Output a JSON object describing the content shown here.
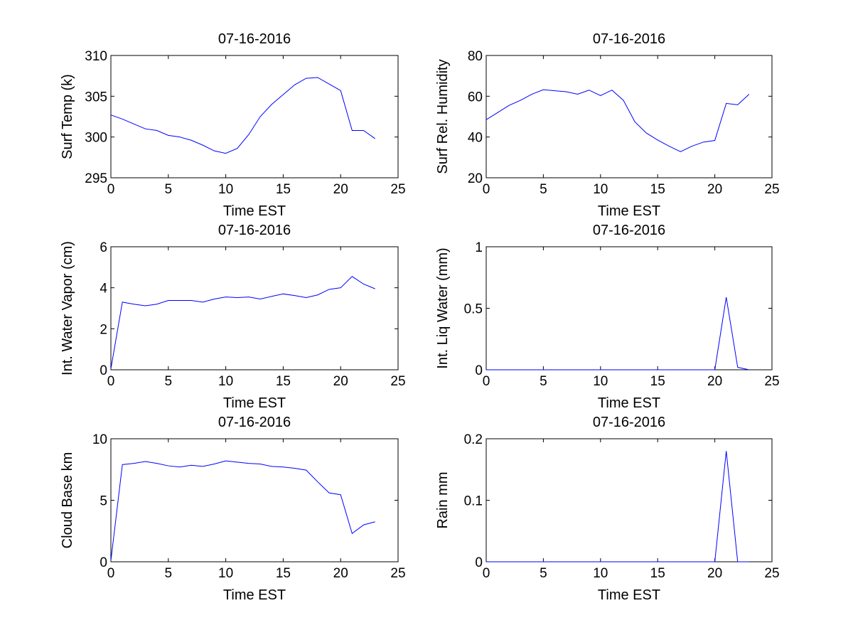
{
  "colors": {
    "background": "#ffffff",
    "axes": "#000000",
    "line": "#0000ff"
  },
  "chart_data": [
    {
      "type": "line",
      "title": "07-16-2016",
      "xlabel": "Time EST",
      "ylabel": "Surf Temp (k)",
      "xlim": [
        0,
        25
      ],
      "ylim": [
        295,
        310
      ],
      "xticks": [
        0,
        5,
        10,
        15,
        20,
        25
      ],
      "yticks": [
        295,
        300,
        305,
        310
      ],
      "grid": false,
      "series": [
        {
          "x": [
            0,
            1,
            2,
            3,
            4,
            5,
            6,
            7,
            8,
            9,
            10,
            11,
            12,
            13,
            14,
            15,
            16,
            17,
            18,
            19,
            20,
            21,
            22,
            23
          ],
          "values": [
            302.7,
            302.2,
            301.6,
            301.0,
            300.8,
            300.2,
            300.0,
            299.6,
            299.0,
            298.3,
            298.0,
            298.6,
            300.3,
            302.5,
            304.0,
            305.2,
            306.4,
            307.2,
            307.3,
            306.5,
            305.7,
            300.8,
            300.8,
            299.8
          ]
        }
      ]
    },
    {
      "type": "line",
      "title": "07-16-2016",
      "xlabel": "Time EST",
      "ylabel": "Surf Rel. Humidity",
      "xlim": [
        0,
        25
      ],
      "ylim": [
        20,
        80
      ],
      "xticks": [
        0,
        5,
        10,
        15,
        20,
        25
      ],
      "yticks": [
        20,
        40,
        60,
        80
      ],
      "grid": false,
      "series": [
        {
          "x": [
            0,
            1,
            2,
            3,
            4,
            5,
            6,
            7,
            8,
            9,
            10,
            11,
            12,
            13,
            14,
            15,
            16,
            17,
            18,
            19,
            20,
            21,
            22,
            23
          ],
          "values": [
            48.5,
            52.0,
            55.5,
            58.0,
            61.0,
            63.2,
            62.7,
            62.2,
            61.0,
            63.0,
            60.3,
            63.0,
            58.0,
            47.5,
            42.0,
            38.5,
            35.5,
            32.8,
            35.5,
            37.5,
            38.3,
            56.5,
            55.8,
            61.0
          ]
        }
      ]
    },
    {
      "type": "line",
      "title": "07-16-2016",
      "xlabel": "Time EST",
      "ylabel": "Int. Water Vapor (cm)",
      "xlim": [
        0,
        25
      ],
      "ylim": [
        0,
        6
      ],
      "xticks": [
        0,
        5,
        10,
        15,
        20,
        25
      ],
      "yticks": [
        0,
        2,
        4,
        6
      ],
      "grid": false,
      "series": [
        {
          "x": [
            0,
            1,
            2,
            3,
            4,
            5,
            6,
            7,
            8,
            9,
            10,
            11,
            12,
            13,
            14,
            15,
            16,
            17,
            18,
            19,
            20,
            21,
            22,
            23
          ],
          "values": [
            0.05,
            3.3,
            3.2,
            3.12,
            3.2,
            3.38,
            3.38,
            3.38,
            3.3,
            3.45,
            3.55,
            3.52,
            3.55,
            3.45,
            3.58,
            3.7,
            3.62,
            3.52,
            3.65,
            3.92,
            4.0,
            4.55,
            4.18,
            3.95
          ]
        }
      ]
    },
    {
      "type": "line",
      "title": "07-16-2016",
      "xlabel": "Time EST",
      "ylabel": "Int. Liq Water (mm)",
      "xlim": [
        0,
        25
      ],
      "ylim": [
        0,
        1
      ],
      "xticks": [
        0,
        5,
        10,
        15,
        20,
        25
      ],
      "yticks": [
        0,
        0.5,
        1
      ],
      "ytick_labels": [
        "0",
        "0.5",
        "1"
      ],
      "grid": false,
      "series": [
        {
          "x": [
            0,
            1,
            2,
            3,
            4,
            5,
            6,
            7,
            8,
            9,
            10,
            11,
            12,
            13,
            14,
            15,
            16,
            17,
            18,
            19,
            20,
            21,
            22,
            23
          ],
          "values": [
            0,
            0,
            0,
            0,
            0,
            0,
            0,
            0,
            0,
            0,
            0,
            0,
            0,
            0,
            0,
            0,
            0,
            0,
            0,
            0,
            0,
            0.59,
            0.02,
            0
          ]
        }
      ]
    },
    {
      "type": "line",
      "title": "07-16-2016",
      "xlabel": "Time EST",
      "ylabel": "Cloud Base km",
      "xlim": [
        0,
        25
      ],
      "ylim": [
        0,
        10
      ],
      "xticks": [
        0,
        5,
        10,
        15,
        20,
        25
      ],
      "yticks": [
        0,
        5,
        10
      ],
      "grid": false,
      "series": [
        {
          "x": [
            0,
            1,
            2,
            3,
            4,
            5,
            6,
            7,
            8,
            9,
            10,
            11,
            12,
            13,
            14,
            15,
            16,
            17,
            18,
            19,
            20,
            21,
            22,
            23
          ],
          "values": [
            0.1,
            7.9,
            8.0,
            8.15,
            8.0,
            7.8,
            7.7,
            7.85,
            7.75,
            7.95,
            8.2,
            8.1,
            8.0,
            7.95,
            7.75,
            7.7,
            7.6,
            7.45,
            6.5,
            5.6,
            5.45,
            2.3,
            3.0,
            3.25
          ]
        }
      ]
    },
    {
      "type": "line",
      "title": "07-16-2016",
      "xlabel": "Time EST",
      "ylabel": "Rain mm",
      "xlim": [
        0,
        25
      ],
      "ylim": [
        0,
        0.2
      ],
      "xticks": [
        0,
        5,
        10,
        15,
        20,
        25
      ],
      "yticks": [
        0,
        0.1,
        0.2
      ],
      "ytick_labels": [
        "0",
        "0.1",
        "0.2"
      ],
      "grid": false,
      "series": [
        {
          "x": [
            0,
            1,
            2,
            3,
            4,
            5,
            6,
            7,
            8,
            9,
            10,
            11,
            12,
            13,
            14,
            15,
            16,
            17,
            18,
            19,
            20,
            21,
            22,
            23
          ],
          "values": [
            0,
            0,
            0,
            0,
            0,
            0,
            0,
            0,
            0,
            0,
            0,
            0,
            0,
            0,
            0,
            0,
            0,
            0,
            0,
            0,
            0,
            0.18,
            0,
            0
          ]
        }
      ]
    }
  ]
}
